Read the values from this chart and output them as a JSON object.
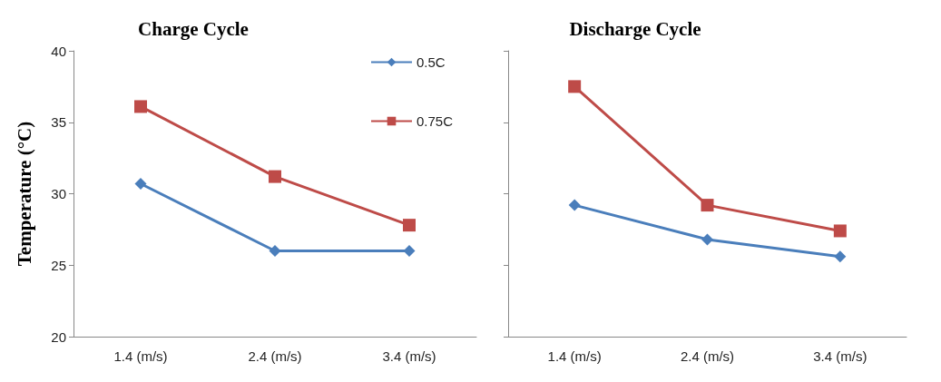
{
  "chart_data": [
    {
      "type": "line",
      "title": "Charge Cycle",
      "ylabel": "Temperature (°C)",
      "categories": [
        "1.4 (m/s)",
        "2.4 (m/s)",
        "3.4 (m/s)"
      ],
      "series": [
        {
          "name": "0.5C",
          "color": "#4a7ebb",
          "marker": "diamond",
          "values": [
            30.7,
            26.0,
            26.0
          ]
        },
        {
          "name": "0.75C",
          "color": "#be4b48",
          "marker": "square",
          "values": [
            36.1,
            31.2,
            27.8
          ]
        }
      ],
      "ylim": [
        20,
        40
      ],
      "yticks": [
        20,
        25,
        30,
        35,
        40
      ],
      "grid": false,
      "legend": "top right"
    },
    {
      "type": "line",
      "title": "Discharge Cycle",
      "categories": [
        "1.4 (m/s)",
        "2.4 (m/s)",
        "3.4 (m/s)"
      ],
      "series": [
        {
          "color": "#4a7ebb",
          "marker": "diamond",
          "values": [
            29.2,
            26.8,
            25.6
          ]
        },
        {
          "color": "#be4b48",
          "marker": "square",
          "values": [
            37.5,
            29.2,
            27.4
          ]
        }
      ],
      "ylim": [
        20,
        40
      ],
      "yticks": [
        20,
        25,
        30,
        35,
        40
      ],
      "grid": false,
      "tick_labels": "x"
    }
  ]
}
